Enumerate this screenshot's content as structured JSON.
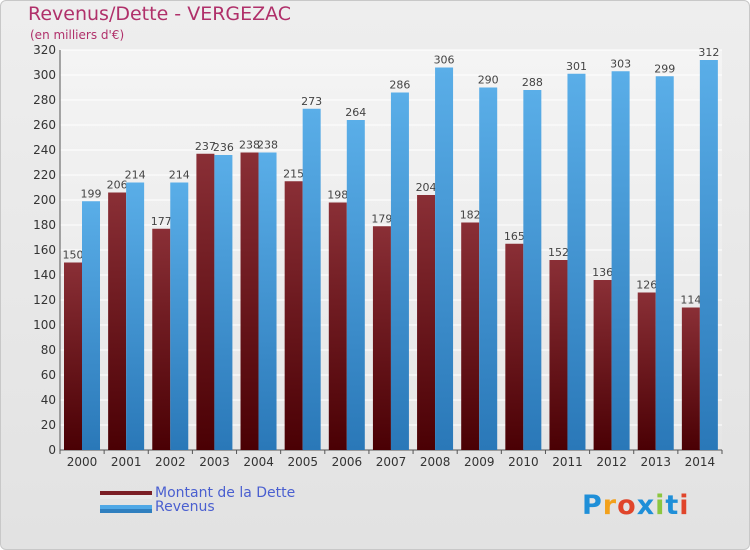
{
  "header": {
    "title": "Revenus/Dette - VERGEZAC",
    "subtitle": "(en milliers d'€)"
  },
  "chart_data": {
    "type": "bar",
    "title": "Revenus/Dette - VERGEZAC",
    "subtitle": "(en milliers d'€)",
    "categories": [
      "2000",
      "2001",
      "2002",
      "2003",
      "2004",
      "2005",
      "2006",
      "2007",
      "2008",
      "2009",
      "2010",
      "2011",
      "2012",
      "2013",
      "2014"
    ],
    "series": [
      {
        "name": "Montant de la Dette",
        "color": "#7b1f26",
        "values": [
          150,
          206,
          177,
          237,
          238,
          215,
          198,
          179,
          204,
          182,
          165,
          152,
          136,
          126,
          114
        ]
      },
      {
        "name": "Revenus",
        "color": "#4fa8e6",
        "values": [
          199,
          214,
          214,
          236,
          238,
          273,
          264,
          286,
          306,
          290,
          288,
          301,
          303,
          299,
          312
        ]
      }
    ],
    "ylim": [
      0,
      320
    ],
    "yticks": [
      0,
      20,
      40,
      60,
      80,
      100,
      120,
      140,
      160,
      180,
      200,
      220,
      240,
      260,
      280,
      300,
      320
    ],
    "grid": true,
    "legend": "bottom-left",
    "data_labels": true
  },
  "legend": {
    "items": [
      {
        "label": "Montant de la Dette",
        "color": "#7b1f26"
      },
      {
        "label": "Revenus",
        "color": "#4fa8e6"
      }
    ]
  },
  "logo": {
    "text": "Proxiti",
    "colors": [
      "#1f8fd8",
      "#f2a11c",
      "#e0452b",
      "#1f8fd8",
      "#8cc63f",
      "#1f8fd8",
      "#e0452b"
    ]
  }
}
